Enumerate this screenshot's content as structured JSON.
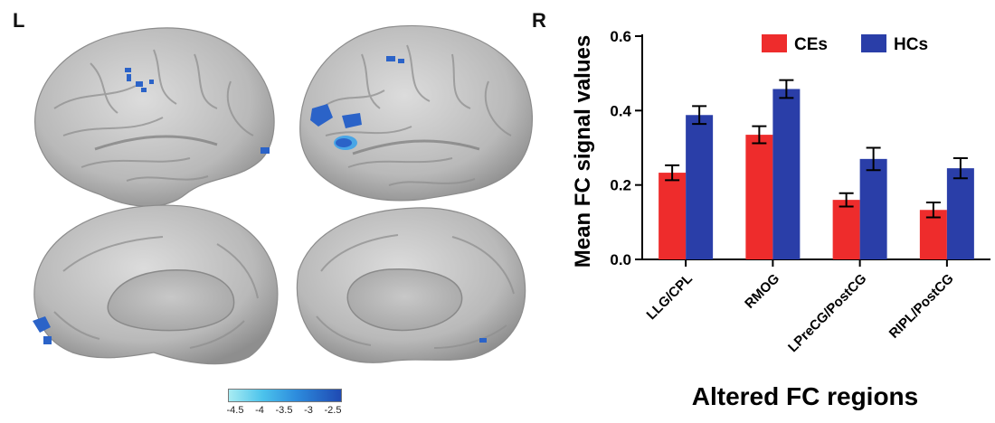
{
  "panel_labels": {
    "left": "L",
    "right": "R"
  },
  "brain_views": [
    "left-lateral",
    "right-lateral",
    "left-medial",
    "right-medial"
  ],
  "colors": {
    "ces": "#ee2c2c",
    "hcs": "#2a3ea8",
    "brain": "#b4b4b4",
    "cluster": "#2b63c8"
  },
  "colorbar": {
    "ticks": [
      "-4.5",
      "-4",
      "-3.5",
      "-3",
      "-2.5"
    ],
    "range": [
      -4.5,
      -2.5
    ]
  },
  "chart_data": {
    "type": "bar",
    "categories": [
      "LLG/CPL",
      "RMOG",
      "LPreCG/PostCG",
      "RIPL/PostCG"
    ],
    "series": [
      {
        "name": "CEs",
        "values": [
          0.233,
          0.335,
          0.16,
          0.133
        ],
        "errors": [
          0.02,
          0.023,
          0.018,
          0.02
        ]
      },
      {
        "name": "HCs",
        "values": [
          0.388,
          0.458,
          0.27,
          0.245
        ],
        "errors": [
          0.024,
          0.024,
          0.03,
          0.027
        ]
      }
    ],
    "title": "",
    "xlabel": "Altered FC regions",
    "ylabel": "Mean FC signal values",
    "ylim": [
      0.0,
      0.6
    ],
    "yticks": [
      "0.0",
      "0.2",
      "0.4",
      "0.6"
    ],
    "grid": false,
    "legend_position": "top-right"
  }
}
